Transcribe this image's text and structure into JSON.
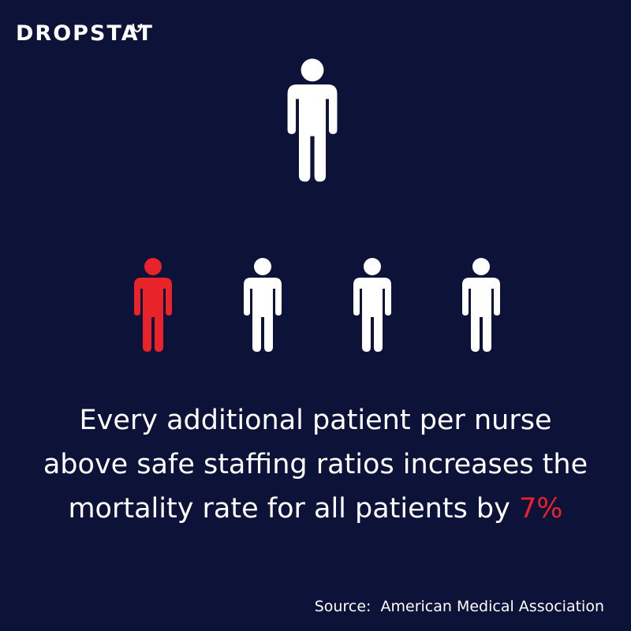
{
  "brand": {
    "logo_text": "DROPSTAT"
  },
  "colors": {
    "background": "#0d1238",
    "figure_default": "#ffffff",
    "figure_highlight": "#e8232a"
  },
  "icons": {
    "nurse": "person-icon",
    "patients": [
      "person-icon",
      "person-icon",
      "person-icon",
      "person-icon"
    ],
    "highlighted_patient_index": 0
  },
  "statement": {
    "line1": "Every additional patient per nurse",
    "line2": "above safe staffing ratios increases the",
    "line3_prefix": "mortality rate for all patients by ",
    "highlight": "7%"
  },
  "source": {
    "label": "Source:",
    "text": "American Medical Association"
  }
}
